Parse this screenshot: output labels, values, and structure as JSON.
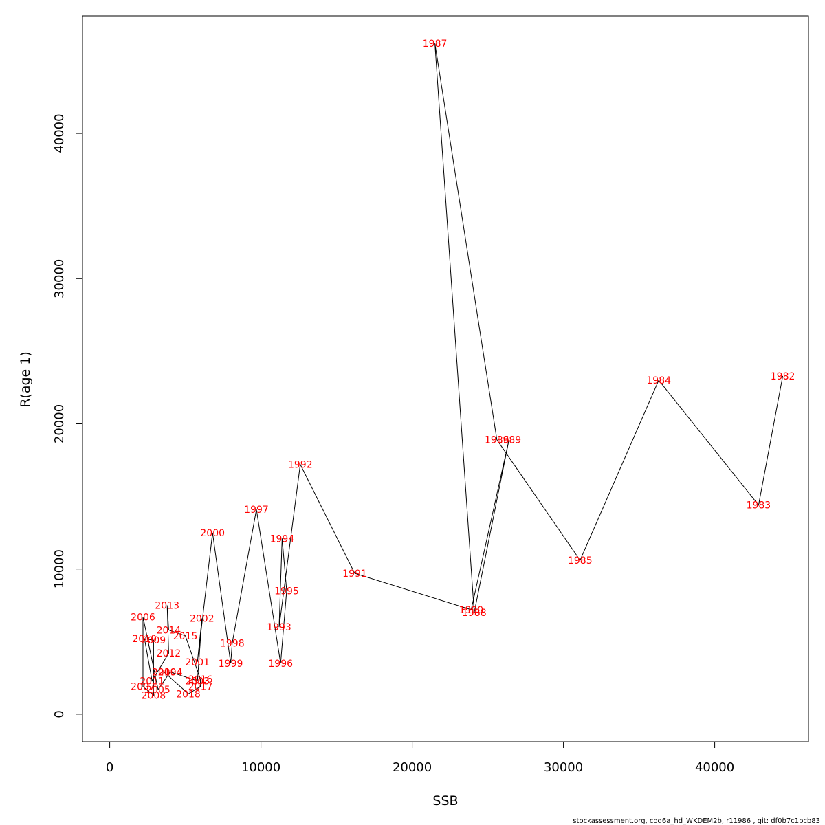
{
  "chart_data": {
    "type": "line",
    "xlabel": "SSB",
    "ylabel": "R(age 1)",
    "xlim": [
      -1800,
      46200
    ],
    "ylim": [
      -1900,
      48100
    ],
    "x_ticks": [
      0,
      10000,
      20000,
      30000,
      40000
    ],
    "y_ticks": [
      0,
      10000,
      20000,
      30000,
      40000
    ],
    "grid": false,
    "label_color": "#ff0000",
    "line_color": "#000000",
    "points": [
      {
        "year": "1982",
        "x": 44500,
        "y": 23300
      },
      {
        "year": "1983",
        "x": 42900,
        "y": 14400
      },
      {
        "year": "1984",
        "x": 36300,
        "y": 23000
      },
      {
        "year": "1985",
        "x": 31100,
        "y": 10600
      },
      {
        "year": "1986",
        "x": 25600,
        "y": 18900
      },
      {
        "year": "1987",
        "x": 21500,
        "y": 46200
      },
      {
        "year": "1988",
        "x": 24100,
        "y": 7000
      },
      {
        "year": "1989",
        "x": 26400,
        "y": 18900
      },
      {
        "year": "1990",
        "x": 23900,
        "y": 7200
      },
      {
        "year": "1991",
        "x": 16200,
        "y": 9700
      },
      {
        "year": "1992",
        "x": 12600,
        "y": 17200
      },
      {
        "year": "1993",
        "x": 11200,
        "y": 6000
      },
      {
        "year": "1994",
        "x": 11400,
        "y": 12100
      },
      {
        "year": "1995",
        "x": 11700,
        "y": 8500
      },
      {
        "year": "1996",
        "x": 11300,
        "y": 3500
      },
      {
        "year": "1997",
        "x": 9700,
        "y": 14100
      },
      {
        "year": "1998",
        "x": 8100,
        "y": 4900
      },
      {
        "year": "1999",
        "x": 8000,
        "y": 3500
      },
      {
        "year": "2000",
        "x": 6800,
        "y": 12500
      },
      {
        "year": "2001",
        "x": 5800,
        "y": 3600
      },
      {
        "year": "2002",
        "x": 6100,
        "y": 6600
      },
      {
        "year": "2003",
        "x": 5800,
        "y": 2300
      },
      {
        "year": "2004",
        "x": 4000,
        "y": 2900
      },
      {
        "year": "2005",
        "x": 3200,
        "y": 1700
      },
      {
        "year": "2006",
        "x": 2200,
        "y": 6700
      },
      {
        "year": "2007",
        "x": 2200,
        "y": 1900
      },
      {
        "year": "2008",
        "x": 2900,
        "y": 1300
      },
      {
        "year": "2009",
        "x": 2900,
        "y": 5100
      },
      {
        "year": "2010",
        "x": 2300,
        "y": 5200
      },
      {
        "year": "2011",
        "x": 2800,
        "y": 2300
      },
      {
        "year": "2012",
        "x": 3900,
        "y": 4200
      },
      {
        "year": "2013",
        "x": 3800,
        "y": 7500
      },
      {
        "year": "2014",
        "x": 3900,
        "y": 5800
      },
      {
        "year": "2015",
        "x": 5000,
        "y": 5400
      },
      {
        "year": "2016",
        "x": 6000,
        "y": 2400
      },
      {
        "year": "2017",
        "x": 6000,
        "y": 1900
      },
      {
        "year": "2018",
        "x": 5200,
        "y": 1400
      },
      {
        "year": "2019",
        "x": 3600,
        "y": 2900
      }
    ]
  },
  "footer": "stockassessment.org, cod6a_hd_WKDEM2b, r11986 , git: df0b7c1bcb83"
}
